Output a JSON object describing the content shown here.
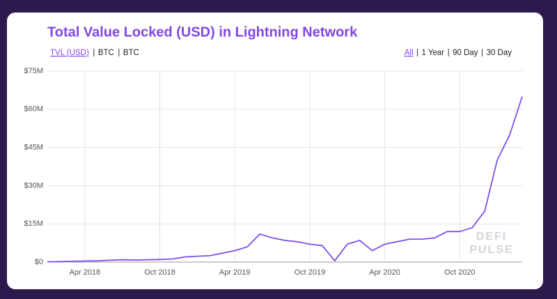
{
  "chart_data": {
    "type": "line",
    "title": "Total Value Locked (USD) in Lightning Network",
    "currency_options": [
      "TVL (USD)",
      "BTC",
      "BTC"
    ],
    "selected_currency": "TVL (USD)",
    "range_options": [
      "All",
      "1 Year",
      "90 Day",
      "30 Day"
    ],
    "selected_range": "All",
    "watermark": [
      "DEFI",
      "PULSE"
    ],
    "color": "#7b4ff0",
    "grid": true,
    "x": [
      "2018-01",
      "2018-02",
      "2018-03",
      "2018-04",
      "2018-05",
      "2018-06",
      "2018-07",
      "2018-08",
      "2018-09",
      "2018-10",
      "2018-11",
      "2018-12",
      "2019-01",
      "2019-02",
      "2019-03",
      "2019-04",
      "2019-05",
      "2019-06",
      "2019-07",
      "2019-08",
      "2019-09",
      "2019-10",
      "2019-11",
      "2019-12",
      "2020-01",
      "2020-02",
      "2020-03",
      "2020-04",
      "2020-05",
      "2020-06",
      "2020-07",
      "2020-08",
      "2020-09",
      "2020-10",
      "2020-11",
      "2020-12",
      "2021-01",
      "2021-02",
      "2021-03"
    ],
    "values": [
      100000,
      200000,
      300000,
      400000,
      500000,
      700000,
      900000,
      800000,
      900000,
      1000000,
      1200000,
      2000000,
      2300000,
      2500000,
      3500000,
      4500000,
      6000000,
      11000000,
      9500000,
      8500000,
      8000000,
      7000000,
      6500000,
      500000,
      7000000,
      8500000,
      4500000,
      7000000,
      8000000,
      9000000,
      9000000,
      9500000,
      12000000,
      12000000,
      13500000,
      20000000,
      40000000,
      50000000,
      65000000
    ],
    "xlim": [
      "2018-01",
      "2021-03"
    ],
    "xticks": [
      {
        "value": "2018-04",
        "label": "Apr 2018"
      },
      {
        "value": "2018-10",
        "label": "Oct 2018"
      },
      {
        "value": "2019-04",
        "label": "Apr 2019"
      },
      {
        "value": "2019-10",
        "label": "Oct 2019"
      },
      {
        "value": "2020-04",
        "label": "Apr 2020"
      },
      {
        "value": "2020-10",
        "label": "Oct 2020"
      }
    ],
    "ylim": [
      0,
      75000000
    ],
    "yticks": [
      {
        "value": 0,
        "label": "$0"
      },
      {
        "value": 15000000,
        "label": "$15M"
      },
      {
        "value": 30000000,
        "label": "$30M"
      },
      {
        "value": 45000000,
        "label": "$45M"
      },
      {
        "value": 60000000,
        "label": "$60M"
      },
      {
        "value": 75000000,
        "label": "$75M"
      }
    ]
  }
}
